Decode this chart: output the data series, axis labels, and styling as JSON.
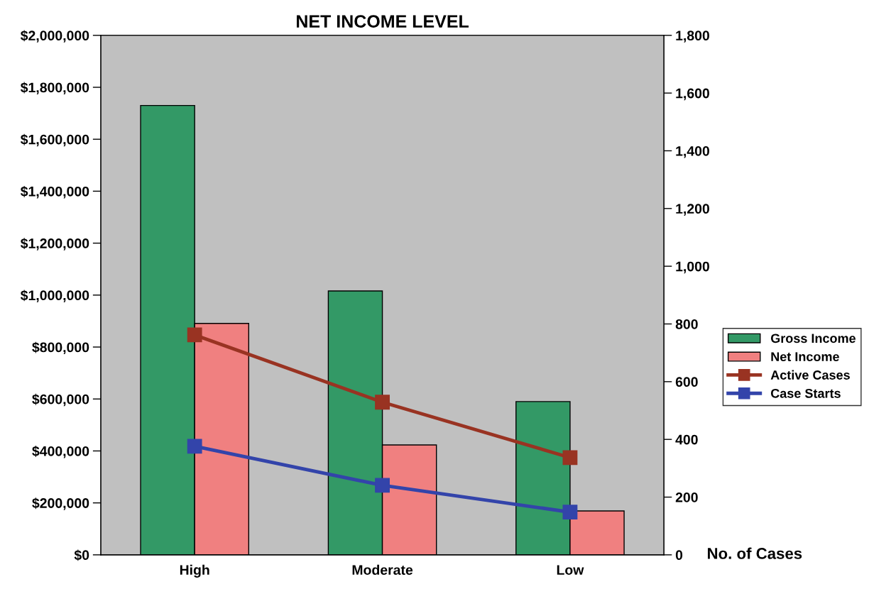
{
  "chart_data": {
    "type": "bar",
    "title": "NET INCOME LEVEL",
    "y2label": "No. of Cases",
    "categories": [
      "High",
      "Moderate",
      "Low"
    ],
    "series": [
      {
        "name": "Gross Income",
        "color": "#339966",
        "values": [
          1730000,
          1016000,
          590000
        ]
      },
      {
        "name": "Net Income",
        "color": "#f08080",
        "values": [
          891000,
          423000,
          169000
        ]
      },
      {
        "name": "Active Cases",
        "type": "line",
        "axis": "y2",
        "color": "#993322",
        "values": [
          762,
          529,
          337
        ]
      },
      {
        "name": "Case Starts",
        "type": "line",
        "axis": "y2",
        "color": "#3344aa",
        "values": [
          376,
          241,
          148
        ]
      }
    ],
    "ylim": [
      0,
      2000000
    ],
    "yticks": [
      {
        "value": 0,
        "label": "$0"
      },
      {
        "value": 200000,
        "label": "$200,000"
      },
      {
        "value": 400000,
        "label": "$400,000"
      },
      {
        "value": 600000,
        "label": "$600,000"
      },
      {
        "value": 800000,
        "label": "$800,000"
      },
      {
        "value": 1000000,
        "label": "$1,000,000"
      },
      {
        "value": 1200000,
        "label": "$1,200,000"
      },
      {
        "value": 1400000,
        "label": "$1,400,000"
      },
      {
        "value": 1600000,
        "label": "$1,600,000"
      },
      {
        "value": 1800000,
        "label": "$1,800,000"
      },
      {
        "value": 2000000,
        "label": "$2,000,000"
      }
    ],
    "y2lim": [
      0,
      1800
    ],
    "y2ticks": [
      0,
      {
        "value": 200,
        "label": "200"
      },
      {
        "value": 400,
        "label": "400"
      },
      {
        "value": 600,
        "label": "600"
      },
      {
        "value": 800,
        "label": "800"
      },
      {
        "value": 1000,
        "label": "1,000"
      },
      {
        "value": 1200,
        "label": "1,200"
      },
      {
        "value": 1400,
        "label": "1,400"
      },
      {
        "value": 1600,
        "label": "1,600"
      },
      {
        "value": 1800,
        "label": "1,800"
      }
    ],
    "marker": "square",
    "line_style": "solid",
    "grid": false,
    "legend": "right"
  }
}
